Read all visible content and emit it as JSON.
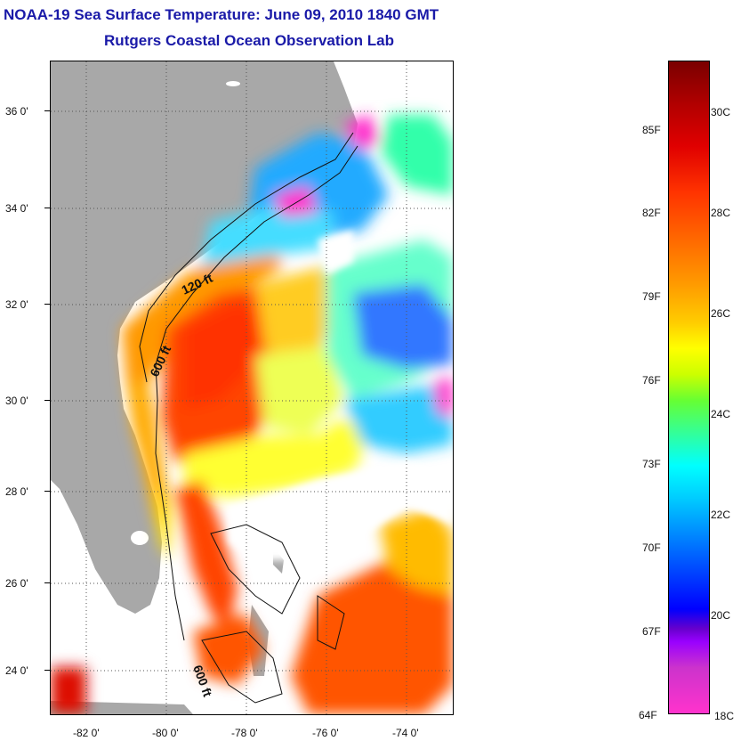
{
  "title": {
    "line1": "NOAA-19 Sea Surface Temperature:  June 09, 2010 1840 GMT",
    "line2": "Rutgers Coastal Ocean Observation Lab"
  },
  "axes": {
    "lat_labels": [
      "36 0'",
      "34 0'",
      "32 0'",
      "30 0'",
      "28 0'",
      "26 0'",
      "24 0'"
    ],
    "lon_labels": [
      "-82 0'",
      "-80 0'",
      "-78 0'",
      "-76 0'",
      "-74 0'"
    ]
  },
  "map": {
    "contours": {
      "c120": "120 ft",
      "c600a": "600 ft",
      "c600b": "600 ft"
    }
  },
  "colorbar": {
    "fahrenheit": [
      "85F",
      "82F",
      "79F",
      "76F",
      "73F",
      "70F",
      "67F",
      "64F"
    ],
    "celsius": [
      "30C",
      "28C",
      "26C",
      "24C",
      "22C",
      "20C",
      "18C"
    ]
  },
  "colors": {
    "title": "#1a1aa8",
    "land": "#a8a8a8"
  }
}
